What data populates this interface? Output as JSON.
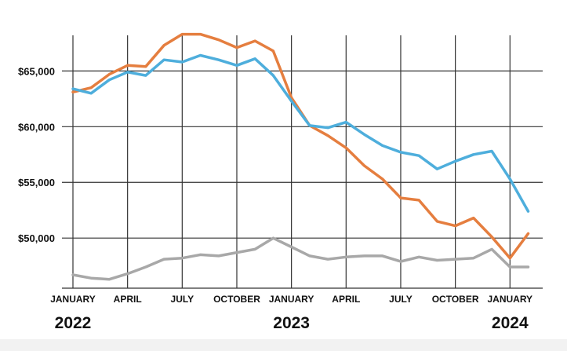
{
  "chart_data": {
    "type": "line",
    "title": "",
    "xlabel": "",
    "ylabel": "",
    "ylim": [
      45500,
      68200
    ],
    "grid": true,
    "y_ticks": [
      {
        "value": 65000,
        "label": "$65,000"
      },
      {
        "value": 60000,
        "label": "$60,000"
      },
      {
        "value": 55000,
        "label": "$55,000"
      },
      {
        "value": 50000,
        "label": "$50,000"
      }
    ],
    "x_ticks": [
      {
        "month": "2022-01",
        "label": "JANUARY"
      },
      {
        "month": "2022-04",
        "label": "APRIL"
      },
      {
        "month": "2022-07",
        "label": "JULY"
      },
      {
        "month": "2022-10",
        "label": "OCTOBER"
      },
      {
        "month": "2023-01",
        "label": "JANUARY"
      },
      {
        "month": "2023-04",
        "label": "APRIL"
      },
      {
        "month": "2023-07",
        "label": "JULY"
      },
      {
        "month": "2023-10",
        "label": "OCTOBER"
      },
      {
        "month": "2024-01",
        "label": "JANUARY"
      }
    ],
    "years": [
      {
        "month": "2022-01",
        "label": "2022"
      },
      {
        "month": "2023-01",
        "label": "2023"
      },
      {
        "month": "2024-01",
        "label": "2024"
      }
    ],
    "x": [
      "2022-01",
      "2022-02",
      "2022-03",
      "2022-04",
      "2022-05",
      "2022-06",
      "2022-07",
      "2022-08",
      "2022-09",
      "2022-10",
      "2022-11",
      "2022-12",
      "2023-01",
      "2023-02",
      "2023-03",
      "2023-04",
      "2023-05",
      "2023-06",
      "2023-07",
      "2023-08",
      "2023-09",
      "2023-10",
      "2023-11",
      "2023-12",
      "2024-01",
      "2024-02"
    ],
    "series": [
      {
        "color": "#4eaedc",
        "values": [
          63400,
          63000,
          64200,
          64900,
          64600,
          66000,
          65800,
          66400,
          66000,
          65500,
          66100,
          64600,
          62300,
          60100,
          59900,
          60400,
          59300,
          58300,
          57700,
          57400,
          56200,
          56900,
          57500,
          57800,
          55300,
          52400
        ]
      },
      {
        "color": "#e57e3f",
        "values": [
          63100,
          63500,
          64700,
          65500,
          65400,
          67300,
          68300,
          68300,
          67800,
          67100,
          67700,
          66800,
          62600,
          60100,
          59200,
          58100,
          56500,
          55300,
          53600,
          53400,
          51500,
          51100,
          51800,
          50100,
          48200,
          50400
        ]
      },
      {
        "color": "#a8a8a8",
        "values": [
          46700,
          46400,
          46300,
          46800,
          47400,
          48100,
          48200,
          48500,
          48400,
          48700,
          49000,
          50000,
          49200,
          48400,
          48100,
          48300,
          48400,
          48400,
          47900,
          48300,
          48000,
          48100,
          48200,
          49000,
          47400,
          47400
        ]
      }
    ]
  }
}
